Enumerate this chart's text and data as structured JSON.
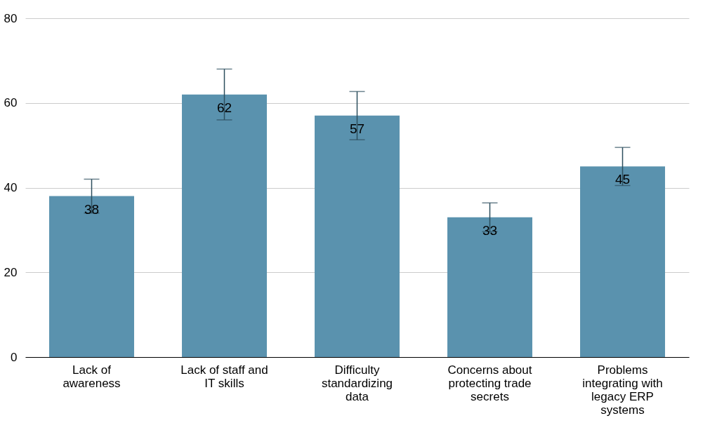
{
  "chart_data": {
    "type": "bar",
    "categories": [
      "Lack of\nawareness",
      "Lack of staff and\nIT skills",
      "Difficulty\nstandardizing\ndata",
      "Concerns about\nprotecting trade\nsecrets",
      "Problems\nintegrating with\nlegacy ERP\nsystems"
    ],
    "values": [
      38,
      62,
      57,
      33,
      45
    ],
    "errors": [
      4,
      6,
      5.7,
      3.4,
      4.5
    ],
    "color": "#5a92ae",
    "ylim": [
      0,
      80
    ],
    "yticks": [
      0,
      20,
      40,
      60,
      80
    ],
    "grid": "y",
    "data_labels": true
  }
}
